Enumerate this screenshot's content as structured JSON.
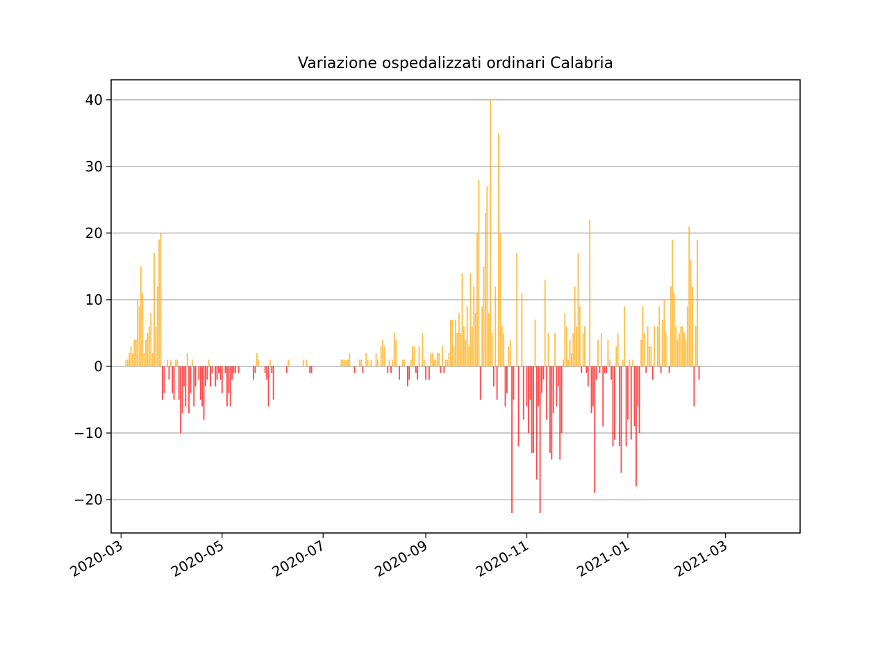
{
  "chart_data": {
    "type": "bar",
    "title": "Variazione ospedalizzati ordinari Calabria",
    "xlabel": "",
    "ylabel": "",
    "x_axis": "date",
    "xlim": [
      "2020-02-24",
      "2021-04-15"
    ],
    "ylim": [
      -25,
      43
    ],
    "y_ticks": [
      -20,
      -10,
      0,
      10,
      20,
      30,
      40
    ],
    "y_tick_labels": [
      "−20",
      "−10",
      "0",
      "10",
      "20",
      "30",
      "40"
    ],
    "x_ticks": [
      "2020-03-01",
      "2020-05-01",
      "2020-07-01",
      "2020-09-01",
      "2020-11-01",
      "2021-01-01",
      "2021-03-01"
    ],
    "x_tick_labels": [
      "2020-03",
      "2020-05",
      "2020-07",
      "2020-09",
      "2020-11",
      "2021-01",
      "2021-03"
    ],
    "grid": "y",
    "legend": "none",
    "colors": {
      "positive": "#ffa500",
      "negative": "#ff0000",
      "grid": "#b0b0b0"
    },
    "start_date": "2020-03-04",
    "values": [
      1,
      1,
      2,
      3,
      2,
      4,
      4,
      10,
      9,
      15,
      11,
      2,
      4,
      5,
      6,
      8,
      2,
      17,
      6,
      12,
      19,
      20,
      -5,
      -4,
      0,
      1,
      -2,
      1,
      -4,
      -5,
      1,
      1,
      -5,
      -10,
      -7,
      -3,
      -6,
      2,
      -7,
      -4,
      1,
      -6,
      -3,
      0,
      -2,
      -5,
      -6,
      -8,
      -3,
      -2,
      1,
      -3,
      -1,
      0,
      -3,
      -2,
      -1,
      -2,
      -4,
      0,
      -1,
      -6,
      -4,
      -6,
      -2,
      -1,
      -1,
      0,
      -1,
      0,
      0,
      0,
      0,
      0,
      0,
      0,
      0,
      -2,
      -1,
      2,
      1,
      0,
      0,
      0,
      -1,
      -2,
      -6,
      1,
      -1,
      -5,
      0,
      0,
      0,
      0,
      0,
      0,
      0,
      -1,
      1,
      0,
      0,
      0,
      0,
      0,
      0,
      0,
      0,
      1,
      0,
      1,
      0,
      -1,
      -1,
      0,
      0,
      0,
      0,
      0,
      0,
      0,
      0,
      0,
      0,
      0,
      0,
      0,
      0,
      0,
      0,
      0,
      1,
      1,
      1,
      1,
      1,
      2,
      0,
      0,
      -1,
      0,
      0,
      1,
      1,
      -1,
      0,
      2,
      1,
      0,
      1,
      0,
      0,
      2,
      1,
      0,
      3,
      4,
      3,
      0,
      -1,
      1,
      -1,
      1,
      5,
      4,
      0,
      -2,
      0,
      1,
      1,
      0,
      -3,
      -2,
      1,
      3,
      3,
      -1,
      -2,
      3,
      0,
      5,
      1,
      -2,
      0,
      -2,
      2,
      2,
      1,
      1,
      2,
      2,
      -1,
      3,
      -1,
      1,
      1,
      2,
      7,
      7,
      3,
      7,
      5,
      8,
      5,
      14,
      6,
      4,
      9,
      3,
      14,
      6,
      12,
      8,
      20,
      28,
      -5,
      9,
      15,
      23,
      27,
      8,
      40,
      5,
      -3,
      12,
      -5,
      35,
      20,
      6,
      5,
      -6,
      -4,
      3,
      4,
      -22,
      -5,
      0,
      17,
      -12,
      0,
      11,
      -8,
      0,
      -6,
      -10,
      -5,
      -13,
      -13,
      7,
      -17,
      -6,
      -22,
      -4,
      -2,
      13,
      -8,
      5,
      -13,
      -14,
      -7,
      5,
      -6,
      -3,
      -14,
      -10,
      1,
      8,
      6,
      1,
      4,
      2,
      5,
      12,
      6,
      17,
      9,
      -1,
      5,
      6,
      -1,
      -3,
      22,
      -7,
      -6,
      -19,
      -2,
      4,
      -1,
      5,
      -9,
      -1,
      -1,
      4,
      1,
      -2,
      -12,
      -11,
      3,
      5,
      -12,
      -16,
      1,
      9,
      -12,
      -8,
      1,
      -11,
      1,
      -9,
      -18,
      -6,
      -10,
      4,
      9,
      5,
      -1,
      6,
      3,
      3,
      -2,
      6,
      0,
      6,
      9,
      -1,
      7,
      10,
      5,
      0,
      -1,
      12,
      19,
      11,
      6,
      4,
      5,
      6,
      6,
      5,
      4,
      9,
      21,
      16,
      12,
      -6,
      6,
      19,
      -2
    ]
  }
}
